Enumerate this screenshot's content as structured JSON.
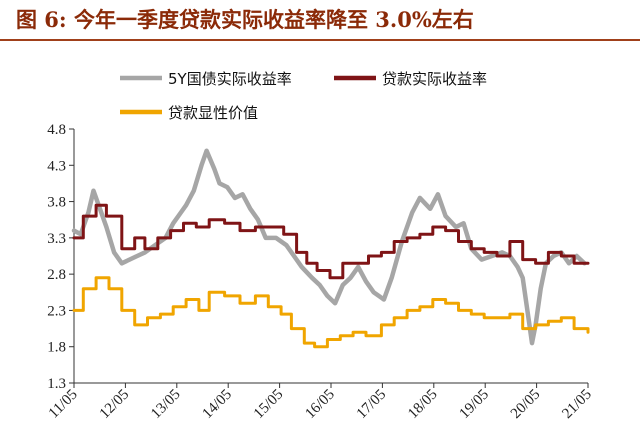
{
  "figure": {
    "title": "图 6:  今年一季度贷款实际收益率降至 3.0%左右"
  },
  "chart_data": {
    "type": "line",
    "ylim": [
      1.3,
      4.8
    ],
    "yticks": [
      "4.8",
      "4.3",
      "3.8",
      "3.3",
      "2.8",
      "2.3",
      "1.8",
      "1.3"
    ],
    "xticks": [
      "11/05",
      "12/05",
      "13/05",
      "14/05",
      "15/05",
      "16/05",
      "17/05",
      "18/05",
      "19/05",
      "20/05",
      "21/05"
    ],
    "xrange_years": [
      2011.37,
      2021.37
    ],
    "legend_placement": "top",
    "grid": false,
    "series": [
      {
        "name": "5Y国债实际收益率",
        "color": "#a6a6a6",
        "x": [
          2011.37,
          2011.5,
          2011.65,
          2011.75,
          2011.85,
          2012.0,
          2012.15,
          2012.3,
          2012.45,
          2012.6,
          2012.75,
          2012.95,
          2013.15,
          2013.3,
          2013.45,
          2013.55,
          2013.7,
          2013.85,
          2013.95,
          2014.1,
          2014.2,
          2014.35,
          2014.5,
          2014.65,
          2014.8,
          2014.95,
          2015.1,
          2015.3,
          2015.5,
          2015.65,
          2015.8,
          2016.0,
          2016.15,
          2016.3,
          2016.45,
          2016.6,
          2016.75,
          2016.9,
          2017.05,
          2017.2,
          2017.4,
          2017.55,
          2017.75,
          2017.95,
          2018.1,
          2018.3,
          2018.45,
          2018.6,
          2018.8,
          2018.95,
          2019.1,
          2019.3,
          2019.5,
          2019.7,
          2019.85,
          2020.0,
          2020.1,
          2020.2,
          2020.28,
          2020.35,
          2020.45,
          2020.55,
          2020.7,
          2020.85,
          2021.0,
          2021.15,
          2021.3
        ],
        "y": [
          3.4,
          3.35,
          3.65,
          3.95,
          3.75,
          3.45,
          3.1,
          2.95,
          3.0,
          3.05,
          3.1,
          3.2,
          3.3,
          3.5,
          3.65,
          3.75,
          3.95,
          4.3,
          4.5,
          4.25,
          4.05,
          4.0,
          3.85,
          3.9,
          3.7,
          3.55,
          3.3,
          3.3,
          3.2,
          3.05,
          2.9,
          2.75,
          2.65,
          2.5,
          2.4,
          2.65,
          2.75,
          2.9,
          2.7,
          2.55,
          2.45,
          2.75,
          3.25,
          3.65,
          3.85,
          3.7,
          3.9,
          3.6,
          3.45,
          3.5,
          3.15,
          3.0,
          3.05,
          3.1,
          3.05,
          2.9,
          2.75,
          2.25,
          1.85,
          2.1,
          2.6,
          2.95,
          3.05,
          3.1,
          2.95,
          3.05,
          2.95
        ]
      },
      {
        "name": "贷款实际收益率",
        "color": "#7f1416",
        "x": [
          2011.37,
          2011.55,
          2011.8,
          2012.0,
          2012.3,
          2012.55,
          2012.75,
          2013.0,
          2013.25,
          2013.5,
          2013.75,
          2014.0,
          2014.3,
          2014.6,
          2014.9,
          2015.15,
          2015.45,
          2015.7,
          2015.9,
          2016.1,
          2016.35,
          2016.6,
          2016.85,
          2017.1,
          2017.35,
          2017.6,
          2017.85,
          2018.1,
          2018.35,
          2018.6,
          2018.85,
          2019.1,
          2019.35,
          2019.6,
          2019.85,
          2020.1,
          2020.35,
          2020.6,
          2020.85,
          2021.1,
          2021.37
        ],
        "y": [
          3.3,
          3.6,
          3.75,
          3.6,
          3.15,
          3.3,
          3.15,
          3.3,
          3.4,
          3.5,
          3.45,
          3.55,
          3.5,
          3.4,
          3.45,
          3.45,
          3.35,
          3.1,
          2.95,
          2.85,
          2.75,
          2.95,
          2.95,
          3.05,
          3.1,
          3.25,
          3.3,
          3.35,
          3.45,
          3.4,
          3.25,
          3.15,
          3.1,
          3.05,
          3.25,
          3.0,
          2.95,
          3.1,
          3.05,
          2.95,
          2.95
        ]
      },
      {
        "name": "贷款显性价值",
        "color": "#f0a500",
        "x": [
          2011.37,
          2011.55,
          2011.8,
          2012.05,
          2012.3,
          2012.55,
          2012.8,
          2013.05,
          2013.3,
          2013.55,
          2013.8,
          2014.0,
          2014.3,
          2014.6,
          2014.9,
          2015.15,
          2015.4,
          2015.6,
          2015.85,
          2016.05,
          2016.3,
          2016.55,
          2016.8,
          2017.05,
          2017.35,
          2017.6,
          2017.85,
          2018.1,
          2018.35,
          2018.6,
          2018.85,
          2019.1,
          2019.35,
          2019.6,
          2019.85,
          2020.1,
          2020.35,
          2020.6,
          2020.85,
          2021.1,
          2021.37
        ],
        "y": [
          2.3,
          2.6,
          2.75,
          2.6,
          2.3,
          2.1,
          2.2,
          2.25,
          2.35,
          2.45,
          2.3,
          2.55,
          2.5,
          2.4,
          2.5,
          2.35,
          2.25,
          2.05,
          1.85,
          1.8,
          1.9,
          1.95,
          2.0,
          1.95,
          2.1,
          2.2,
          2.3,
          2.35,
          2.45,
          2.4,
          2.3,
          2.25,
          2.2,
          2.2,
          2.25,
          2.05,
          2.1,
          2.15,
          2.2,
          2.05,
          2.0
        ]
      }
    ]
  }
}
